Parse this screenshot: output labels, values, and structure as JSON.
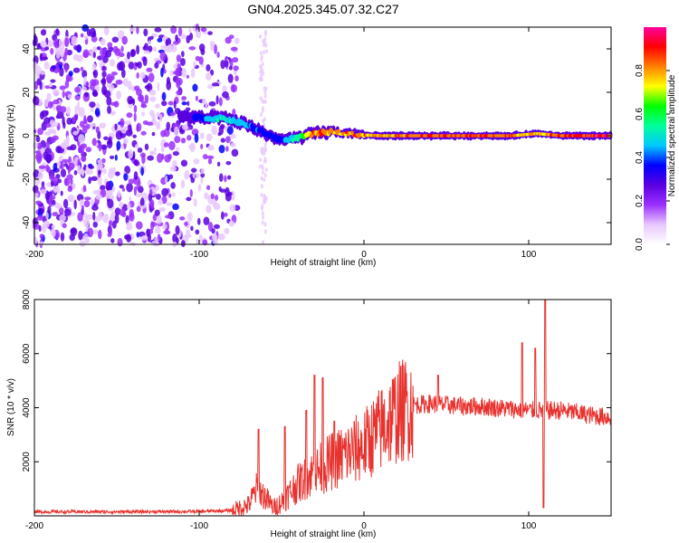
{
  "title": "GN04.2025.345.07.32.C27",
  "chart_data": [
    {
      "type": "heatmap",
      "name": "spectrogram",
      "xlabel": "Height of straight line (km)",
      "ylabel": "Frequency (Hz)",
      "xlim": [
        -200,
        150
      ],
      "ylim": [
        -50,
        50
      ],
      "xticks": [
        -200,
        -100,
        0,
        100
      ],
      "yticks": [
        -40,
        -20,
        0,
        20,
        40
      ],
      "noise_region_x": [
        -200,
        -77
      ],
      "noise_strip_x": [
        -63,
        -59
      ],
      "signal_track": [
        {
          "x": -112,
          "f": 9,
          "amp": 0.25
        },
        {
          "x": -95,
          "f": 8,
          "amp": 0.45
        },
        {
          "x": -85,
          "f": 8,
          "amp": 0.55
        },
        {
          "x": -75,
          "f": 6,
          "amp": 0.5
        },
        {
          "x": -68,
          "f": 4,
          "amp": 0.45
        },
        {
          "x": -60,
          "f": 1,
          "amp": 0.4
        },
        {
          "x": -50,
          "f": -2,
          "amp": 0.4
        },
        {
          "x": -40,
          "f": -1,
          "amp": 0.6
        },
        {
          "x": -30,
          "f": 1,
          "amp": 0.9
        },
        {
          "x": -18,
          "f": 2,
          "amp": 0.85
        },
        {
          "x": -5,
          "f": 0.5,
          "amp": 0.9
        },
        {
          "x": 10,
          "f": 0,
          "amp": 0.85
        },
        {
          "x": 30,
          "f": 0,
          "amp": 0.9
        },
        {
          "x": 60,
          "f": 0,
          "amp": 0.95
        },
        {
          "x": 90,
          "f": 0,
          "amp": 0.9
        },
        {
          "x": 105,
          "f": 1,
          "amp": 0.8
        },
        {
          "x": 120,
          "f": 0,
          "amp": 0.95
        },
        {
          "x": 150,
          "f": 0,
          "amp": 1.0
        }
      ]
    },
    {
      "type": "line",
      "name": "snr",
      "xlabel": "Height of straight line (km)",
      "ylabel": "SNR (10 * v/v)",
      "xlim": [
        -200,
        150
      ],
      "ylim": [
        0,
        8000
      ],
      "xticks": [
        -200,
        -100,
        0,
        100
      ],
      "yticks": [
        2000,
        4000,
        6000,
        8000
      ],
      "color": "#e8322e",
      "envelope": {
        "x": [
          -200,
          -150,
          -100,
          -80,
          -70,
          -65,
          -60,
          -55,
          -50,
          -40,
          -30,
          -20,
          -10,
          0,
          10,
          20,
          30,
          40,
          50,
          60,
          70,
          80,
          90,
          100,
          110,
          120,
          130,
          140,
          150
        ],
        "y": [
          150,
          150,
          160,
          200,
          400,
          1000,
          700,
          300,
          500,
          1200,
          1600,
          2000,
          2300,
          2600,
          3200,
          3800,
          4100,
          4150,
          4100,
          4050,
          4050,
          4000,
          3950,
          3900,
          3900,
          3900,
          3800,
          3700,
          3650
        ]
      },
      "spikes": [
        {
          "x": -64,
          "y": 3200
        },
        {
          "x": -48,
          "y": 3300
        },
        {
          "x": -35,
          "y": 3900
        },
        {
          "x": -30,
          "y": 5200
        },
        {
          "x": -25,
          "y": 5100
        },
        {
          "x": -18,
          "y": 3500
        },
        {
          "x": 45,
          "y": 5200
        },
        {
          "x": 96,
          "y": 6400
        },
        {
          "x": 104,
          "y": 6200
        },
        {
          "x": 110,
          "y": 8000
        },
        {
          "x": 109,
          "y": 300
        }
      ]
    }
  ],
  "colorbar": {
    "label": "Normalized spectral amplitude",
    "ticks": [
      "0.0",
      "0.2",
      "0.4",
      "0.6",
      "0.8"
    ],
    "tick_values": [
      0.0,
      0.2,
      0.4,
      0.6,
      0.8
    ],
    "range": [
      0,
      1
    ],
    "colors": [
      "#ffffff",
      "#e8c8ff",
      "#9b30ff",
      "#5a00e0",
      "#0000ff",
      "#00c8ff",
      "#00ff9a",
      "#00ff00",
      "#ffff00",
      "#ff8000",
      "#ff0000",
      "#ff00a0"
    ]
  }
}
